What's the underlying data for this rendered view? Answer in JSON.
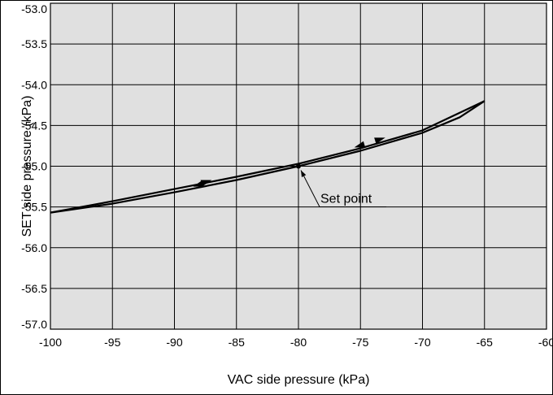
{
  "chart_data": {
    "type": "line",
    "title": "",
    "xlabel": "VAC side pressure (kPa)",
    "ylabel": "SET side pressure (kPa)",
    "xlim": [
      -100,
      -60
    ],
    "ylim": [
      -57.0,
      -53.0
    ],
    "x_ticks": [
      -100,
      -95,
      -90,
      -85,
      -80,
      -75,
      -70,
      -65,
      -60
    ],
    "x_tick_labels": [
      "-100",
      "-95",
      "-90",
      "-85",
      "-80",
      "-75",
      "-70",
      "-65",
      "-60"
    ],
    "y_ticks": [
      -53.0,
      -53.5,
      -54.0,
      -54.5,
      -55.0,
      -55.5,
      -56.0,
      -56.5,
      -57.0
    ],
    "y_tick_labels": [
      "-53.0",
      "-53.5",
      "-54.0",
      "-54.5",
      "-55.0",
      "-55.5",
      "-56.0",
      "-56.5",
      "-57.0"
    ],
    "grid": true,
    "plot_background": "#e0e0e0",
    "line_color": "#000000",
    "series": [
      {
        "direction": "increasing",
        "points": [
          [
            -100,
            -55.57
          ],
          [
            -95,
            -55.43
          ],
          [
            -90,
            -55.28
          ],
          [
            -85,
            -55.13
          ],
          [
            -80,
            -54.97
          ],
          [
            -75,
            -54.78
          ],
          [
            -70,
            -54.56
          ],
          [
            -65,
            -54.2
          ]
        ]
      },
      {
        "direction": "decreasing",
        "points": [
          [
            -65,
            -54.2
          ],
          [
            -67,
            -54.4
          ],
          [
            -70,
            -54.59
          ],
          [
            -75,
            -54.81
          ],
          [
            -80,
            -55.0
          ],
          [
            -85,
            -55.17
          ],
          [
            -90,
            -55.32
          ],
          [
            -95,
            -55.46
          ],
          [
            -100,
            -55.57
          ]
        ]
      }
    ],
    "direction_arrows": [
      {
        "x": -73.0,
        "y": -54.65,
        "pointing": "right"
      },
      {
        "x": -87.0,
        "y": -55.17,
        "pointing": "right"
      },
      {
        "x": -75.5,
        "y": -54.77,
        "pointing": "left"
      },
      {
        "x": -88.5,
        "y": -55.25,
        "pointing": "left"
      }
    ],
    "annotations": [
      {
        "text": "Set point",
        "x": -80,
        "y": -55.0
      }
    ]
  }
}
